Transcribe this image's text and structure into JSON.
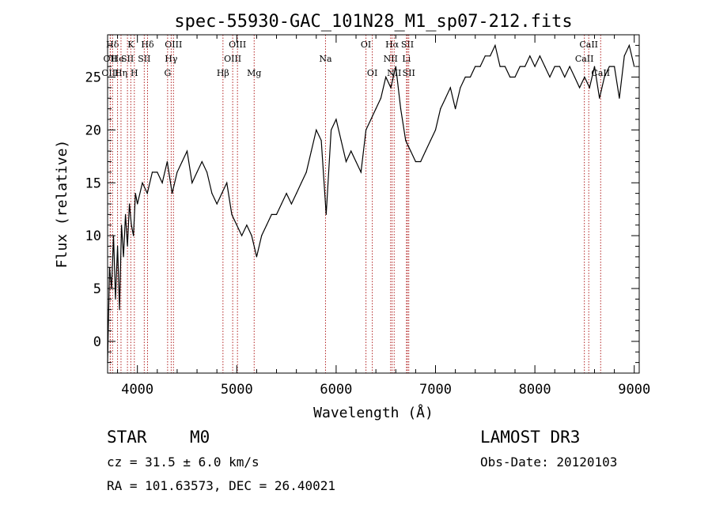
{
  "chart_data": {
    "type": "line",
    "title": "spec-55930-GAC_101N28_M1_sp07-212.fits",
    "xlabel": "Wavelength (Å)",
    "ylabel": "Flux (relative)",
    "xlim": [
      3700,
      9050
    ],
    "ylim": [
      -3,
      29
    ],
    "xticks": [
      4000,
      5000,
      6000,
      7000,
      8000,
      9000
    ],
    "yticks": [
      0,
      5,
      10,
      15,
      20,
      25
    ],
    "grid": false,
    "series": [
      {
        "x": [
          3700,
          3720,
          3740,
          3760,
          3780,
          3800,
          3820,
          3840,
          3860,
          3880,
          3900,
          3920,
          3940,
          3960,
          3980,
          4000,
          4050,
          4100,
          4150,
          4200,
          4250,
          4300,
          4350,
          4400,
          4450,
          4500,
          4550,
          4600,
          4650,
          4700,
          4750,
          4800,
          4850,
          4900,
          4950,
          5000,
          5050,
          5100,
          5150,
          5200,
          5250,
          5300,
          5350,
          5400,
          5450,
          5500,
          5550,
          5600,
          5650,
          5700,
          5750,
          5800,
          5850,
          5900,
          5950,
          6000,
          6050,
          6100,
          6150,
          6200,
          6250,
          6300,
          6350,
          6400,
          6450,
          6500,
          6550,
          6600,
          6650,
          6700,
          6750,
          6800,
          6850,
          6900,
          6950,
          7000,
          7050,
          7100,
          7150,
          7200,
          7250,
          7300,
          7350,
          7400,
          7450,
          7500,
          7550,
          7600,
          7650,
          7700,
          7750,
          7800,
          7850,
          7900,
          7950,
          8000,
          8050,
          8100,
          8150,
          8200,
          8250,
          8300,
          8350,
          8400,
          8450,
          8500,
          8550,
          8600,
          8650,
          8700,
          8750,
          8800,
          8850,
          8900,
          8950,
          9000
        ],
        "values": [
          -2,
          7,
          5,
          10,
          4,
          9,
          3,
          11,
          8,
          12,
          9,
          13,
          11,
          10,
          14,
          13,
          15,
          14,
          16,
          16,
          15,
          17,
          14,
          16,
          17,
          18,
          15,
          16,
          17,
          16,
          14,
          13,
          14,
          15,
          12,
          11,
          10,
          11,
          10,
          8,
          10,
          11,
          12,
          12,
          13,
          14,
          13,
          14,
          15,
          16,
          18,
          20,
          19,
          12,
          20,
          21,
          19,
          17,
          18,
          17,
          16,
          20,
          21,
          22,
          23,
          25,
          24,
          26,
          22,
          19,
          18,
          17,
          17,
          18,
          19,
          20,
          22,
          23,
          24,
          22,
          24,
          25,
          25,
          26,
          26,
          27,
          27,
          28,
          26,
          26,
          25,
          25,
          26,
          26,
          27,
          26,
          27,
          26,
          25,
          26,
          26,
          25,
          26,
          25,
          24,
          25,
          24,
          26,
          23,
          25,
          26,
          26,
          23,
          27,
          28,
          26
        ]
      }
    ],
    "line_markers": [
      {
        "label": "Hδ",
        "x": 3750,
        "row": 0
      },
      {
        "label": "OII",
        "x": 3727,
        "row": 1
      },
      {
        "label": "OIII",
        "x": 3727,
        "row": 2
      },
      {
        "label": "He",
        "x": 3800,
        "row": 1
      },
      {
        "label": "Hη",
        "x": 3835,
        "row": 2
      },
      {
        "label": "K",
        "x": 3934,
        "row": 0
      },
      {
        "label": "SII",
        "x": 3900,
        "row": 1
      },
      {
        "label": "H",
        "x": 3969,
        "row": 2
      },
      {
        "label": "Hδ",
        "x": 4102,
        "row": 0
      },
      {
        "label": "SII",
        "x": 4069,
        "row": 1
      },
      {
        "label": "OIII",
        "x": 4363,
        "row": 0
      },
      {
        "label": "Hγ",
        "x": 4340,
        "row": 1
      },
      {
        "label": "G",
        "x": 4304,
        "row": 2
      },
      {
        "label": "OIII",
        "x": 5007,
        "row": 0
      },
      {
        "label": "OIII",
        "x": 4959,
        "row": 1
      },
      {
        "label": "Hβ",
        "x": 4861,
        "row": 2
      },
      {
        "label": "Mg",
        "x": 5175,
        "row": 2
      },
      {
        "label": "Na",
        "x": 5893,
        "row": 1
      },
      {
        "label": "OI",
        "x": 6300,
        "row": 0
      },
      {
        "label": "OI",
        "x": 6364,
        "row": 2
      },
      {
        "label": "Hα",
        "x": 6563,
        "row": 0
      },
      {
        "label": "NII",
        "x": 6548,
        "row": 1
      },
      {
        "label": "NII",
        "x": 6584,
        "row": 2
      },
      {
        "label": "SII",
        "x": 6717,
        "row": 0
      },
      {
        "label": "Li",
        "x": 6708,
        "row": 1
      },
      {
        "label": "SII",
        "x": 6731,
        "row": 2
      },
      {
        "label": "CaII",
        "x": 8542,
        "row": 0
      },
      {
        "label": "CaII",
        "x": 8498,
        "row": 1
      },
      {
        "label": "CaII",
        "x": 8662,
        "row": 2
      }
    ]
  },
  "info": {
    "object_class": "STAR",
    "subclass": "M0",
    "survey": "LAMOST DR3",
    "cz": "cz = 31.5 ± 6.0 km/s",
    "obs_date": "Obs-Date: 20120103",
    "coords": "RA = 101.63573, DEC =  26.40021"
  },
  "colors": {
    "line": "#000000",
    "marker": "#b22222"
  }
}
